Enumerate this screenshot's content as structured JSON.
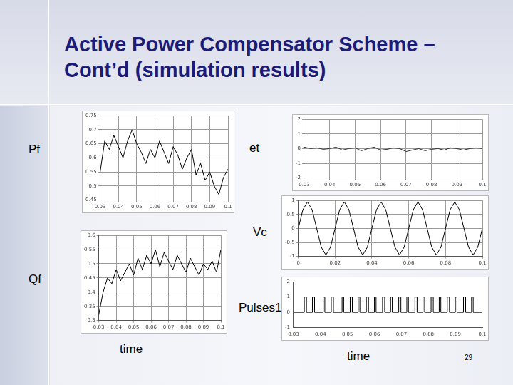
{
  "slide": {
    "title": "Active Power Compensator Scheme – Cont’d (simulation results)",
    "page_number": 29
  },
  "chart_data": [
    {
      "type": "line",
      "ylabel": "Pf",
      "color": "#000000",
      "grid": true,
      "x": [
        0.03,
        0.0325,
        0.035,
        0.0375,
        0.04,
        0.0425,
        0.045,
        0.0475,
        0.05,
        0.0525,
        0.055,
        0.0575,
        0.06,
        0.0625,
        0.065,
        0.0675,
        0.07,
        0.0725,
        0.075,
        0.0775,
        0.08,
        0.0825,
        0.085,
        0.0875,
        0.09,
        0.0925,
        0.095,
        0.0975,
        0.1
      ],
      "values": [
        0.55,
        0.66,
        0.63,
        0.68,
        0.64,
        0.6,
        0.66,
        0.7,
        0.65,
        0.62,
        0.58,
        0.63,
        0.6,
        0.66,
        0.62,
        0.58,
        0.64,
        0.61,
        0.56,
        0.6,
        0.63,
        0.54,
        0.58,
        0.52,
        0.55,
        0.5,
        0.47,
        0.53,
        0.56
      ],
      "xlim": [
        0.03,
        0.1
      ],
      "xticks": [
        0.03,
        0.04,
        0.05,
        0.06,
        0.07,
        0.08,
        0.09,
        0.1
      ],
      "ylim": [
        0.45,
        0.75
      ],
      "yticks": [
        0.45,
        0.5,
        0.55,
        0.6,
        0.65,
        0.7,
        0.75
      ]
    },
    {
      "type": "line",
      "ylabel": "Qf",
      "xlabel": "time",
      "color": "#000000",
      "grid": true,
      "x": [
        0.03,
        0.0325,
        0.035,
        0.0375,
        0.04,
        0.0425,
        0.045,
        0.0475,
        0.05,
        0.0525,
        0.055,
        0.0575,
        0.06,
        0.0625,
        0.065,
        0.0675,
        0.07,
        0.0725,
        0.075,
        0.0775,
        0.08,
        0.0825,
        0.085,
        0.0875,
        0.09,
        0.0925,
        0.095,
        0.0975,
        0.1
      ],
      "values": [
        0.32,
        0.4,
        0.45,
        0.43,
        0.48,
        0.44,
        0.47,
        0.5,
        0.46,
        0.52,
        0.48,
        0.53,
        0.5,
        0.55,
        0.49,
        0.54,
        0.51,
        0.48,
        0.53,
        0.5,
        0.47,
        0.52,
        0.49,
        0.46,
        0.5,
        0.48,
        0.51,
        0.47,
        0.55
      ],
      "xlim": [
        0.03,
        0.1
      ],
      "xticks": [
        0.03,
        0.04,
        0.05,
        0.06,
        0.07,
        0.08,
        0.09,
        0.1
      ],
      "ylim": [
        0.3,
        0.6
      ],
      "yticks": [
        0.3,
        0.35,
        0.4,
        0.45,
        0.5,
        0.55,
        0.6
      ]
    },
    {
      "type": "line",
      "ylabel": "et",
      "color": "#333333",
      "grid": true,
      "x": [
        0.03,
        0.0325,
        0.035,
        0.0375,
        0.04,
        0.0425,
        0.045,
        0.0475,
        0.05,
        0.0525,
        0.055,
        0.0575,
        0.06,
        0.0625,
        0.065,
        0.0675,
        0.07,
        0.0725,
        0.075,
        0.0775,
        0.08,
        0.0825,
        0.085,
        0.0875,
        0.09,
        0.0925,
        0.095,
        0.0975,
        0.1
      ],
      "values": [
        0.1,
        0,
        0.05,
        -0.05,
        0,
        0.1,
        -0.1,
        0,
        0.05,
        -0.15,
        0,
        0.1,
        -0.1,
        -0.05,
        0.05,
        0,
        -0.2,
        -0.1,
        0,
        -0.15,
        -0.05,
        0,
        -0.1,
        0.05,
        0,
        -0.1,
        0,
        0.05,
        0
      ],
      "xlim": [
        0.03,
        0.1
      ],
      "xticks": [
        0.03,
        0.04,
        0.05,
        0.06,
        0.07,
        0.08,
        0.09,
        0.1
      ],
      "ylim": [
        -2,
        2
      ],
      "yticks": [
        -2,
        -1,
        0,
        1,
        2
      ]
    },
    {
      "type": "line",
      "ylabel": "Vc",
      "color": "#000000",
      "grid": true,
      "x": [
        0,
        0.0025,
        0.005,
        0.0075,
        0.01,
        0.0125,
        0.015,
        0.0175,
        0.02,
        0.0225,
        0.025,
        0.0275,
        0.03,
        0.0325,
        0.035,
        0.0375,
        0.04,
        0.0425,
        0.045,
        0.0475,
        0.05,
        0.0525,
        0.055,
        0.0575,
        0.06,
        0.0625,
        0.065,
        0.0675,
        0.07,
        0.0725,
        0.075,
        0.0775,
        0.08,
        0.0825,
        0.085,
        0.0875,
        0.09,
        0.0925,
        0.095,
        0.0975,
        0.1
      ],
      "values": [
        0,
        0.67,
        0.95,
        0.67,
        0,
        -0.67,
        -0.95,
        -0.67,
        0,
        0.67,
        0.95,
        0.67,
        0,
        -0.67,
        -0.95,
        -0.67,
        0,
        0.67,
        0.95,
        0.67,
        0,
        -0.67,
        -0.95,
        -0.67,
        0,
        0.67,
        0.95,
        0.67,
        0,
        -0.67,
        -0.95,
        -0.67,
        0,
        0.67,
        0.95,
        0.67,
        0,
        -0.67,
        -0.95,
        -0.67,
        0
      ],
      "xlim": [
        0,
        0.1
      ],
      "xticks": [
        0,
        0.02,
        0.04,
        0.06,
        0.08,
        0.1
      ],
      "ylim": [
        -1,
        1
      ],
      "yticks": [
        -1,
        -0.5,
        0,
        0.5,
        1
      ]
    },
    {
      "type": "line",
      "ylabel": "Pulses1",
      "xlabel": "time",
      "color": "#000000",
      "grid": false,
      "line_style": "steps",
      "x": [
        0.03,
        0.034,
        0.0348,
        0.037,
        0.0378,
        0.041,
        0.0416,
        0.044,
        0.0448,
        0.048,
        0.0486,
        0.051,
        0.0518,
        0.054,
        0.0546,
        0.057,
        0.0578,
        0.06,
        0.0606,
        0.063,
        0.0638,
        0.066,
        0.0666,
        0.069,
        0.0698,
        0.072,
        0.0726,
        0.075,
        0.0758,
        0.078,
        0.0786,
        0.081,
        0.0818,
        0.084,
        0.0846,
        0.087,
        0.0878,
        0.09,
        0.0906,
        0.093,
        0.0938,
        0.096,
        0.0966,
        0.1
      ],
      "values": [
        0,
        1,
        0,
        1,
        0,
        1,
        0,
        1,
        0,
        1,
        0,
        1,
        0,
        1,
        0,
        1,
        0,
        1,
        0,
        1,
        0,
        1,
        0,
        1,
        0,
        1,
        0,
        1,
        0,
        1,
        0,
        1,
        0,
        1,
        0,
        1,
        0,
        1,
        0,
        1,
        0,
        1,
        0,
        0
      ],
      "xlim": [
        0.03,
        0.1
      ],
      "xticks": [
        0.03,
        0.04,
        0.05,
        0.06,
        0.07,
        0.08,
        0.09,
        0.1
      ],
      "ylim": [
        -1,
        2
      ],
      "yticks": [
        -1,
        0,
        1,
        2
      ]
    }
  ]
}
